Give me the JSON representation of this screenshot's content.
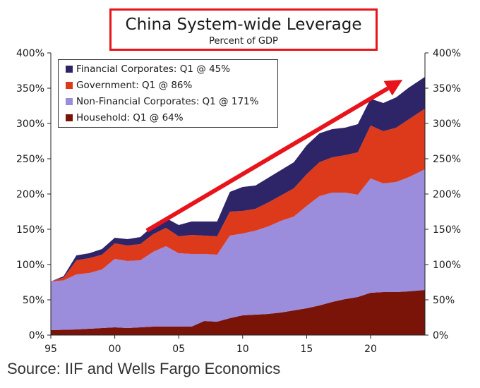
{
  "title": "China System-wide Leverage",
  "subtitle": "Percent of GDP",
  "source": "Source: IIF and Wells Fargo Economics",
  "colors": {
    "household": "#7a1408",
    "non_financial": "#9b8cdc",
    "government": "#dd3a1c",
    "financial": "#2e2468",
    "arrow": "#e8141c",
    "title_border": "#e8141c"
  },
  "chart_data": {
    "type": "area",
    "stacked": true,
    "xlim": [
      1995,
      2024.25
    ],
    "ylim": [
      0,
      400
    ],
    "x_tick_values": [
      1995,
      2000,
      2005,
      2010,
      2015,
      2020
    ],
    "x_tick_labels": [
      "95",
      "00",
      "05",
      "10",
      "15",
      "20"
    ],
    "y_tick_values": [
      0,
      50,
      100,
      150,
      200,
      250,
      300,
      350,
      400
    ],
    "y_tick_labels": [
      "0%",
      "50%",
      "100%",
      "150%",
      "200%",
      "250%",
      "300%",
      "350%",
      "400%"
    ],
    "legend_position": "top-left",
    "annotation": "upward trend arrow",
    "x": [
      1995,
      1996,
      1997,
      1998,
      1999,
      2000,
      2001,
      2002,
      2003,
      2004,
      2005,
      2006,
      2007,
      2008,
      2009,
      2010,
      2011,
      2012,
      2013,
      2014,
      2015,
      2016,
      2017,
      2018,
      2019,
      2020,
      2021,
      2022,
      2023,
      2024.25
    ],
    "series": [
      {
        "name": "Household: Q1 @ 64%",
        "key": "household",
        "values": [
          7,
          7.5,
          8,
          9,
          10,
          11,
          10,
          11,
          12,
          12,
          12,
          12,
          20,
          19,
          24,
          28,
          29,
          30,
          32,
          35,
          38,
          42,
          47,
          51,
          54,
          60,
          61,
          61,
          62,
          64
        ]
      },
      {
        "name": "Non-Financial Corporates: Q1 @ 171%",
        "key": "non_financial",
        "values": [
          69,
          70,
          78,
          79,
          83,
          97,
          95,
          95,
          106,
          114,
          104,
          103,
          95,
          95,
          117,
          116,
          119,
          124,
          130,
          133,
          145,
          155,
          155,
          151,
          145,
          162,
          154,
          156,
          162,
          171
        ]
      },
      {
        "name": "Government: Q1 @ 86%",
        "key": "government",
        "values": [
          0,
          4,
          20,
          21,
          21,
          22,
          22,
          23,
          25,
          26,
          24,
          27,
          26,
          26,
          34,
          32,
          31,
          34,
          36,
          40,
          45,
          48,
          50,
          53,
          60,
          75,
          74,
          77,
          82,
          86
        ]
      },
      {
        "name": "Financial Corporates: Q1 @ 45%",
        "key": "financial",
        "values": [
          0,
          2,
          7,
          7,
          8,
          8,
          9,
          10,
          12,
          14,
          16,
          19,
          20,
          21,
          28,
          34,
          33,
          35,
          36,
          37,
          41,
          41,
          40,
          39,
          40,
          38,
          40,
          43,
          45,
          45
        ]
      }
    ]
  }
}
